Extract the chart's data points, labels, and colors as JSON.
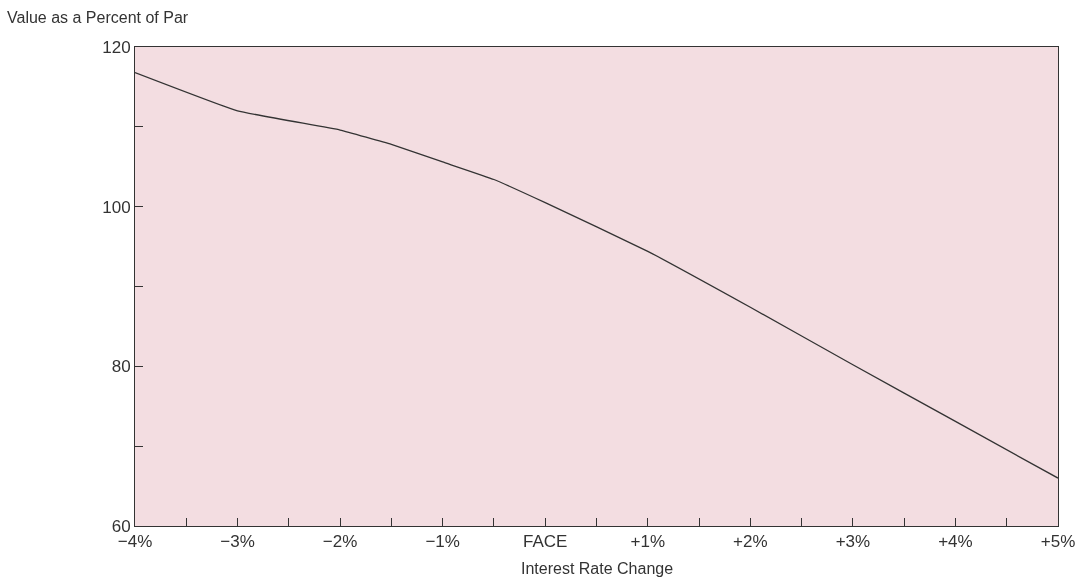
{
  "chart_data": {
    "type": "line",
    "ylabel": "Value as a Percent of Par",
    "xlabel": "Interest Rate Change",
    "x": [
      -4,
      -3,
      -2,
      -1.5,
      -1,
      -0.5,
      0,
      1,
      2,
      3,
      4,
      5
    ],
    "series": [
      {
        "color": "#333333",
        "values": [
          116.8,
          112.0,
          109.6,
          107.8,
          105.6,
          103.4,
          100.5,
          94.4,
          87.4,
          80.2,
          73.1,
          66.0
        ]
      }
    ],
    "xlim": [
      -4,
      5
    ],
    "xticks": [
      {
        "value": -4,
        "label": "−4%"
      },
      {
        "value": -3.5,
        "label": null
      },
      {
        "value": -3,
        "label": "−3%"
      },
      {
        "value": -2.5,
        "label": null
      },
      {
        "value": -2,
        "label": "−2%"
      },
      {
        "value": -1.5,
        "label": null
      },
      {
        "value": -1,
        "label": "−1%"
      },
      {
        "value": -0.5,
        "label": null
      },
      {
        "value": 0,
        "label": "FACE"
      },
      {
        "value": 0.5,
        "label": null
      },
      {
        "value": 1,
        "label": "+1%"
      },
      {
        "value": 1.5,
        "label": null
      },
      {
        "value": 2,
        "label": "+2%"
      },
      {
        "value": 2.5,
        "label": null
      },
      {
        "value": 3,
        "label": "+3%"
      },
      {
        "value": 3.5,
        "label": null
      },
      {
        "value": 4,
        "label": "+4%"
      },
      {
        "value": 4.5,
        "label": null
      },
      {
        "value": 5,
        "label": "+5%"
      }
    ],
    "ylim": [
      60,
      120
    ],
    "yticks": [
      60,
      {
        "value": 70,
        "label": null
      },
      80,
      {
        "value": 90,
        "label": null
      },
      100,
      {
        "value": 110,
        "label": null
      },
      120
    ],
    "grid": false,
    "legend": false,
    "marker": "none",
    "line_style": "solid"
  }
}
